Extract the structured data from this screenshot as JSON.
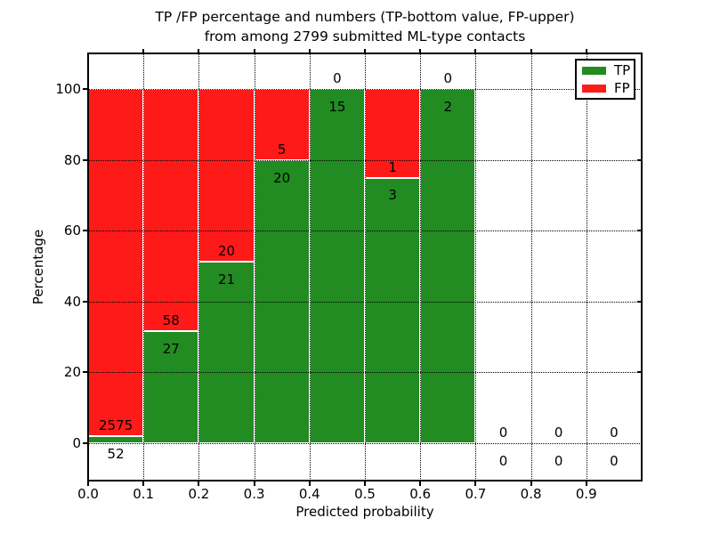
{
  "title": {
    "line1": "TP /FP percentage and numbers (TP-bottom value, FP-upper)",
    "line2": "from among 2799 submitted ML-type contacts"
  },
  "axes": {
    "xlabel": "Predicted probability",
    "ylabel": "Percentage",
    "x_tick_labels": [
      "0.0",
      "0.1",
      "0.2",
      "0.3",
      "0.4",
      "0.5",
      "0.6",
      "0.7",
      "0.8",
      "0.9"
    ],
    "y_tick_labels": [
      "0",
      "20",
      "40",
      "60",
      "80",
      "100"
    ]
  },
  "legend": {
    "items": [
      {
        "label": "TP",
        "color": "#228b22"
      },
      {
        "label": "FP",
        "color": "#ff1a1a"
      }
    ]
  },
  "chart_data": {
    "type": "bar",
    "stacked": true,
    "normalized_to_percent": true,
    "title": "TP /FP percentage and numbers (TP-bottom value, FP-upper) from among 2799 submitted ML-type contacts",
    "xlabel": "Predicted probability",
    "ylabel": "Percentage",
    "bin_starts": [
      0.0,
      0.1,
      0.2,
      0.3,
      0.4,
      0.5,
      0.6,
      0.7,
      0.8,
      0.9
    ],
    "bin_width": 0.1,
    "series": [
      {
        "name": "TP",
        "color": "#228b22",
        "values": [
          52,
          27,
          21,
          20,
          15,
          3,
          2,
          0,
          0,
          0
        ]
      },
      {
        "name": "FP",
        "color": "#ff1a1a",
        "values": [
          2575,
          58,
          20,
          5,
          0,
          1,
          0,
          0,
          0,
          0
        ]
      }
    ],
    "tp_percent_of_bin": [
      1.98,
      31.76,
      51.22,
      80.0,
      100.0,
      75.0,
      100.0,
      null,
      null,
      null
    ],
    "total_contacts": 2799,
    "xlim": [
      0.0,
      1.0
    ],
    "ylim": [
      0,
      100
    ],
    "y_ticks": [
      0,
      20,
      40,
      60,
      80,
      100
    ],
    "grid": "dotted black, both axes",
    "legend_position": "upper right"
  }
}
